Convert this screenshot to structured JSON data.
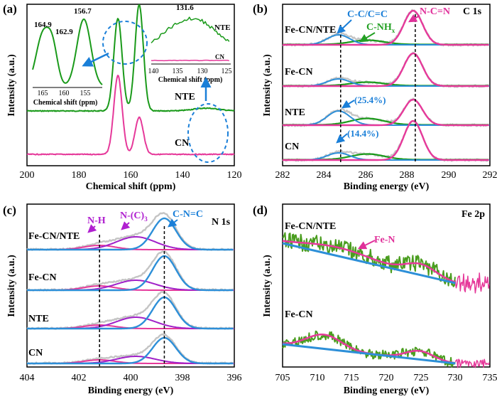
{
  "colors": {
    "green": "#1a9a1a",
    "magenta": "#e6399a",
    "blue": "#2d8fd8",
    "purple": "#a020c8",
    "gray": "#c4c4c4",
    "darkblue": "#1f5fbf",
    "olive": "#4a9d1f",
    "annot_blue": "#1a7fd8",
    "annot_magenta": "#e0309a",
    "annot_green": "#23a023",
    "annot_purple": "#b020d0"
  },
  "chart_data": [
    {
      "id": "a",
      "panel_label": "(a)",
      "type": "line",
      "xlabel": "Chemical shift (ppm)",
      "ylabel": "Intensity (a.u.)",
      "xlim": [
        200,
        120
      ],
      "xticks": [
        "200",
        "180",
        "160",
        "140",
        "120"
      ],
      "series": [
        {
          "name": "NTE",
          "color": "green",
          "peaks": [
            [
              164.9,
              1.0
            ],
            [
              156.7,
              1.15
            ]
          ]
        },
        {
          "name": "CN",
          "color": "magenta",
          "peaks": [
            [
              164.9,
              0.85
            ],
            [
              156.7,
              0.4
            ]
          ]
        }
      ],
      "labels": [
        "NTE",
        "CN"
      ],
      "inset_left": {
        "xlabel": "Chemical shift (ppm)",
        "xticks": [
          "165",
          "160",
          "155"
        ],
        "xlim": [
          167,
          153
        ],
        "annotations": [
          "164.9",
          "162.9",
          "156.7"
        ]
      },
      "inset_right": {
        "xlabel": "Chemical shift (ppm)",
        "xticks": [
          "140",
          "135",
          "130",
          "125"
        ],
        "xlim": [
          140,
          125
        ],
        "annotations": [
          "131.6"
        ],
        "series_labels": [
          "NTE",
          "CN"
        ]
      }
    },
    {
      "id": "b",
      "panel_label": "(b)",
      "title": "C 1s",
      "type": "line",
      "xlabel": "Binding energy (eV)",
      "ylabel": "Intensity (a.u.)",
      "xlim": [
        282,
        292
      ],
      "xticks": [
        "282",
        "284",
        "286",
        "288",
        "290",
        "292"
      ],
      "samples": [
        "Fe-CN/NTE",
        "Fe-CN",
        "NTE",
        "CN"
      ],
      "components": [
        {
          "name": "C-C/C=C",
          "center": 284.8,
          "color": "blue"
        },
        {
          "name": "C-NH_x",
          "center": 286.2,
          "color": "green"
        },
        {
          "name": "N-C=N",
          "center": 288.3,
          "color": "magenta"
        }
      ],
      "percent_labels": [
        "(25.4%)",
        "(14.4%)"
      ],
      "label_cc": "C-C/C=C",
      "label_cnh": "C-NH",
      "label_cnh_sub": "x",
      "label_ncn": "N-C=N"
    },
    {
      "id": "c",
      "panel_label": "(c)",
      "title": "N 1s",
      "type": "line",
      "xlabel": "Binding energy (eV)",
      "ylabel": "Intensity (a.u.)",
      "xlim": [
        404,
        396
      ],
      "xticks": [
        "404",
        "402",
        "400",
        "398",
        "396"
      ],
      "samples": [
        "Fe-CN/NTE",
        "Fe-CN",
        "NTE",
        "CN"
      ],
      "components": [
        {
          "name": "N-H",
          "center": 401.2,
          "color": "magenta"
        },
        {
          "name": "N-(C)3",
          "center": 399.8,
          "color": "purple"
        },
        {
          "name": "C-N=C",
          "center": 398.7,
          "color": "blue"
        }
      ],
      "label_nh": "N-H",
      "label_nc": "N-(C)",
      "label_nc_sub": "3",
      "label_cnc": "C-N=C"
    },
    {
      "id": "d",
      "panel_label": "(d)",
      "title": "Fe 2p",
      "type": "line",
      "xlabel": "Binding energy (eV)",
      "ylabel": "Intensity (a.u.)",
      "xlim": [
        705,
        735
      ],
      "xticks": [
        "705",
        "710",
        "715",
        "720",
        "725",
        "730",
        "735"
      ],
      "samples": [
        "Fe-CN/NTE",
        "Fe-CN"
      ],
      "components": [
        {
          "name": "Fe-N",
          "color": "magenta"
        }
      ],
      "label_fen": "Fe-N"
    }
  ]
}
